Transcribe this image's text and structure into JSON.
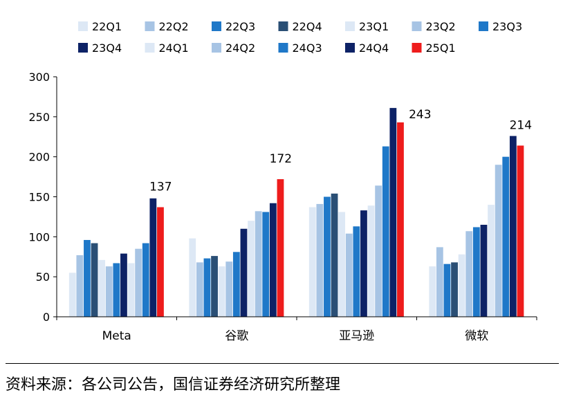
{
  "chart_data": {
    "type": "bar",
    "categories": [
      "Meta",
      "谷歌",
      "亚马逊",
      "微软"
    ],
    "series": [
      {
        "name": "22Q1",
        "color": "#dde8f5",
        "values": [
          55,
          98,
          137,
          63
        ]
      },
      {
        "name": "22Q2",
        "color": "#a7c4e4",
        "values": [
          77,
          68,
          141,
          87
        ]
      },
      {
        "name": "22Q3",
        "color": "#1f78c8",
        "values": [
          96,
          73,
          150,
          66
        ]
      },
      {
        "name": "22Q4",
        "color": "#2a4f75",
        "values": [
          92,
          76,
          154,
          68
        ]
      },
      {
        "name": "23Q1",
        "color": "#dde8f5",
        "values": [
          71,
          63,
          131,
          78
        ]
      },
      {
        "name": "23Q2",
        "color": "#a7c4e4",
        "values": [
          63,
          69,
          104,
          107
        ]
      },
      {
        "name": "23Q3",
        "color": "#1f78c8",
        "values": [
          67,
          81,
          113,
          112
        ]
      },
      {
        "name": "23Q4",
        "color": "#0d2266",
        "values": [
          79,
          110,
          133,
          115
        ]
      },
      {
        "name": "24Q1",
        "color": "#dde8f5",
        "values": [
          67,
          120,
          139,
          140
        ]
      },
      {
        "name": "24Q2",
        "color": "#a7c4e4",
        "values": [
          85,
          132,
          164,
          190
        ]
      },
      {
        "name": "24Q3",
        "color": "#1f78c8",
        "values": [
          92,
          131,
          213,
          200
        ]
      },
      {
        "name": "24Q4",
        "color": "#0d2266",
        "values": [
          148,
          142,
          261,
          226
        ]
      },
      {
        "name": "25Q1",
        "color": "#ee1c1c",
        "values": [
          137,
          172,
          243,
          214
        ]
      }
    ],
    "data_labels": [
      {
        "category_index": 0,
        "series_index": 12,
        "text": "137"
      },
      {
        "category_index": 1,
        "series_index": 12,
        "text": "172"
      },
      {
        "category_index": 2,
        "series_index": 12,
        "text": "243"
      },
      {
        "category_index": 3,
        "series_index": 12,
        "text": "214"
      }
    ],
    "ylim": [
      0,
      300
    ],
    "yticks": [
      0,
      50,
      100,
      150,
      200,
      250,
      300
    ],
    "title": "",
    "xlabel": "",
    "ylabel": "",
    "grid": false,
    "legend_position": "top"
  },
  "source_note": "资料来源：各公司公告，国信证券经济研究所整理"
}
